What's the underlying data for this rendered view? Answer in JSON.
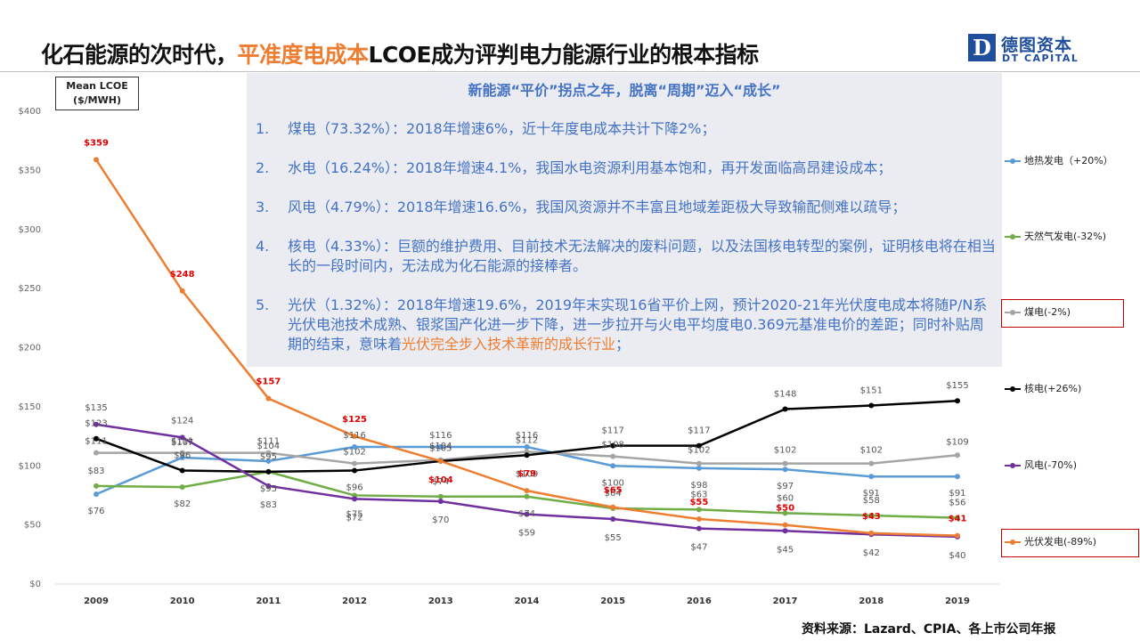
{
  "title": {
    "prefix": "化石能源的次时代，",
    "highlight": "平准度电成本",
    "suffix": "LCOE成为评判电力能源行业的根本指标"
  },
  "logo": {
    "mark": "D",
    "cn": "德图资本",
    "en": "DT CAPITAL"
  },
  "colors": {
    "geothermal": "#5b9bd5",
    "gas": "#70ad47",
    "coal": "#a5a5a5",
    "nuclear": "#000000",
    "wind": "#7030a0",
    "solar": "#ed7d31",
    "highlight": "#ed7d31",
    "panel_text": "#4472c4",
    "red_label": "#e00000"
  },
  "chart_data": {
    "type": "line",
    "unit_label_line1": "Mean LCOE",
    "unit_label_line2": "($/MWH)",
    "x": [
      "2009",
      "2010",
      "2011",
      "2012",
      "2013",
      "2014",
      "2015",
      "2016",
      "2017",
      "2018",
      "2019"
    ],
    "y_ticks": [
      "$0",
      "$50",
      "$100",
      "$150",
      "$200",
      "$250",
      "$300",
      "$350",
      "$400"
    ],
    "ylim": [
      0,
      400
    ],
    "grid": false,
    "series": [
      {
        "key": "geothermal",
        "name": "地热发电（+20%）",
        "values": [
          76,
          107,
          104,
          116,
          116,
          116,
          100,
          98,
          97,
          91,
          91
        ],
        "labels": [
          "$76",
          "$107",
          "$104",
          "$116",
          "$116",
          "$116",
          "$100",
          "$98",
          "$97",
          "$91",
          "$91"
        ]
      },
      {
        "key": "gas",
        "name": "天然气发电(-32%)",
        "values": [
          83,
          82,
          95,
          75,
          74,
          74,
          64,
          63,
          60,
          58,
          56
        ],
        "labels": [
          "$83",
          "$82",
          "$95",
          "$75",
          "$74",
          "$74",
          "$64",
          "$63",
          "$60",
          "$58",
          "$56"
        ]
      },
      {
        "key": "coal",
        "name": "煤电(-2%)",
        "values": [
          111,
          111,
          111,
          102,
          105,
          112,
          108,
          102,
          102,
          102,
          109
        ],
        "labels": [
          "$111",
          "$111",
          "$111",
          "$102",
          "$105",
          "$112",
          "$108",
          "$102",
          "$102",
          "$102",
          "$109"
        ]
      },
      {
        "key": "nuclear",
        "name": "核电(+26%)",
        "values": [
          123,
          96,
          95,
          96,
          104,
          109,
          117,
          117,
          148,
          151,
          155
        ],
        "labels": [
          "$123",
          "$96",
          "$95",
          "$96",
          "$104",
          "$109",
          "$117",
          "$117",
          "$148",
          "$151",
          "$155"
        ]
      },
      {
        "key": "wind",
        "name": "风电(-70%)",
        "values": [
          135,
          124,
          83,
          72,
          70,
          59,
          55,
          47,
          45,
          42,
          40
        ],
        "labels": [
          "$135",
          "$124",
          "$83",
          "$72",
          "$70",
          "$59",
          "$55",
          "$47",
          "$45",
          "$42",
          "$40"
        ]
      },
      {
        "key": "solar",
        "name": "光伏发电(-89%)",
        "values": [
          359,
          248,
          157,
          125,
          104,
          79,
          65,
          55,
          50,
          43,
          41
        ],
        "labels": [
          "$359",
          "$248",
          "$157",
          "$125",
          "$104",
          "$79",
          "$65",
          "$55",
          "$50",
          "$43",
          "$41"
        ]
      }
    ],
    "legend_placement": "right"
  },
  "panel": {
    "heading": "新能源“平价”拐点之年，脱离“周期”迈入“成长”",
    "items": [
      {
        "num": "1.",
        "text": "煤电（73.32%）：2018年增速6%，近十年度电成本共计下降2%；"
      },
      {
        "num": "2.",
        "text": "水电（16.24%）：2018年增速4.1%，我国水电资源利用基本饱和，再开发面临高昂建设成本；"
      },
      {
        "num": "3.",
        "text": "风电（4.79%）：2018年增速16.6%，我国风资源并不丰富且地域差距极大导致输配侧难以疏导；"
      },
      {
        "num": "4.",
        "text": "核电（4.33%）：巨额的维护费用、目前技术无法解决的废料问题，以及法国核电转型的案例，证明核电将在相当长的一段时间内，无法成为化石能源的接棒者。"
      },
      {
        "num": "5.",
        "text": "光伏（1.32%）：2018年增速19.6%，2019年末实现16省平价上网，预计2020-21年光伏度电成本将随P/N系光伏电池技术成熟、银浆国产化进一步下降，进一步拉开与火电平均度电0.369元基准电价的差距；同时补贴周期的结束，意味着",
        "highlight": "光伏完全步入技术革新的成长行业",
        "tail": "；"
      }
    ]
  },
  "source": "资料来源：Lazard、CPIA、各上市公司年报"
}
